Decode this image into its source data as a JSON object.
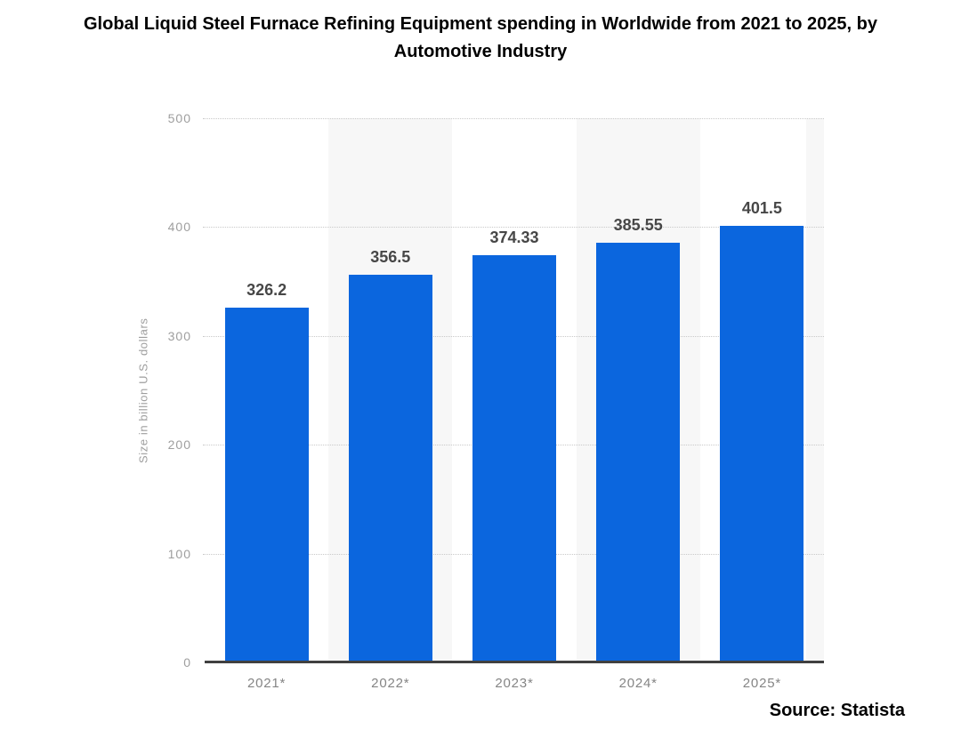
{
  "title_lines": [
    "Global Liquid Steel Furnace Refining Equipment spending in Worldwide from 2021 to 2025, by",
    "Automotive Industry"
  ],
  "source": "Source: Statista",
  "chart_data": {
    "type": "bar",
    "title": "Global Liquid Steel Furnace Refining Equipment spending in Worldwide from 2021 to 2025, by Automotive Industry",
    "categories": [
      "2021*",
      "2022*",
      "2023*",
      "2024*",
      "2025*"
    ],
    "values": [
      326.2,
      356.5,
      374.33,
      385.55,
      401.5
    ],
    "value_labels": [
      "326.2",
      "356.5",
      "374.33",
      "385.55",
      "401.5"
    ],
    "xlabel": "",
    "ylabel": "Size in billion U.S. dollars",
    "ylim": [
      0,
      500
    ],
    "yticks": [
      0,
      100,
      200,
      300,
      400,
      500
    ],
    "grid": "horizontal-dotted",
    "legend": "none",
    "banded_columns": [
      1,
      3
    ],
    "colors": {
      "bar": "#0b66de",
      "band": "#f7f7f7",
      "gridline": "#c9c9c9",
      "axis_line": "#404040",
      "ytick_text": "#9e9e9e",
      "value_text": "#474747",
      "xtick_text": "#858585",
      "title_text": "#000000"
    }
  }
}
